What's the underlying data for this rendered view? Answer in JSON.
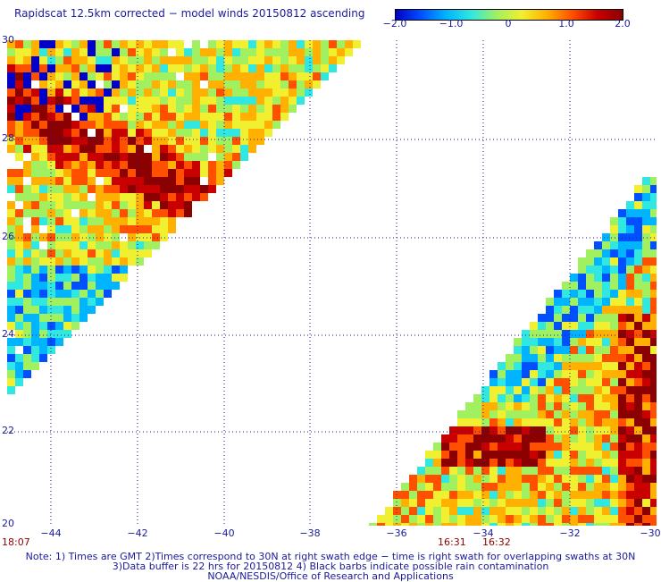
{
  "title": "Rapidscat 12.5km corrected − model winds 20150812 ascending",
  "colorbar": {
    "ticks": [
      "−2.0",
      "−1.0",
      "0",
      "1.0",
      "2.0"
    ],
    "range": [
      -2.0,
      2.0
    ],
    "colors": [
      "#0000c8",
      "#0050ff",
      "#00b4ff",
      "#30e8e0",
      "#a0f060",
      "#f0f030",
      "#ffb000",
      "#ff5000",
      "#c80000",
      "#8b0000"
    ]
  },
  "axes": {
    "lon_labels": [
      "−44",
      "−42",
      "−40",
      "−38",
      "−36",
      "−34",
      "−32",
      "−30"
    ],
    "lat_labels": [
      "30",
      "28",
      "26",
      "24",
      "22",
      "20"
    ],
    "lon_range": [
      -44.4,
      -30
    ],
    "lat_range": [
      20,
      30
    ],
    "grid": true
  },
  "times": [
    "18:07",
    "16:31",
    "16:32"
  ],
  "notes": [
    "Note: 1) Times are GMT 2)Times correspond to 30N at right swath edge − time is right swath for overlapping swaths at 30N",
    "3)Data buffer is 22 hrs for 20150812 4) Black barbs indicate possible rain contamination",
    "NOAA/NESDIS/Office of Research and Applications"
  ]
}
